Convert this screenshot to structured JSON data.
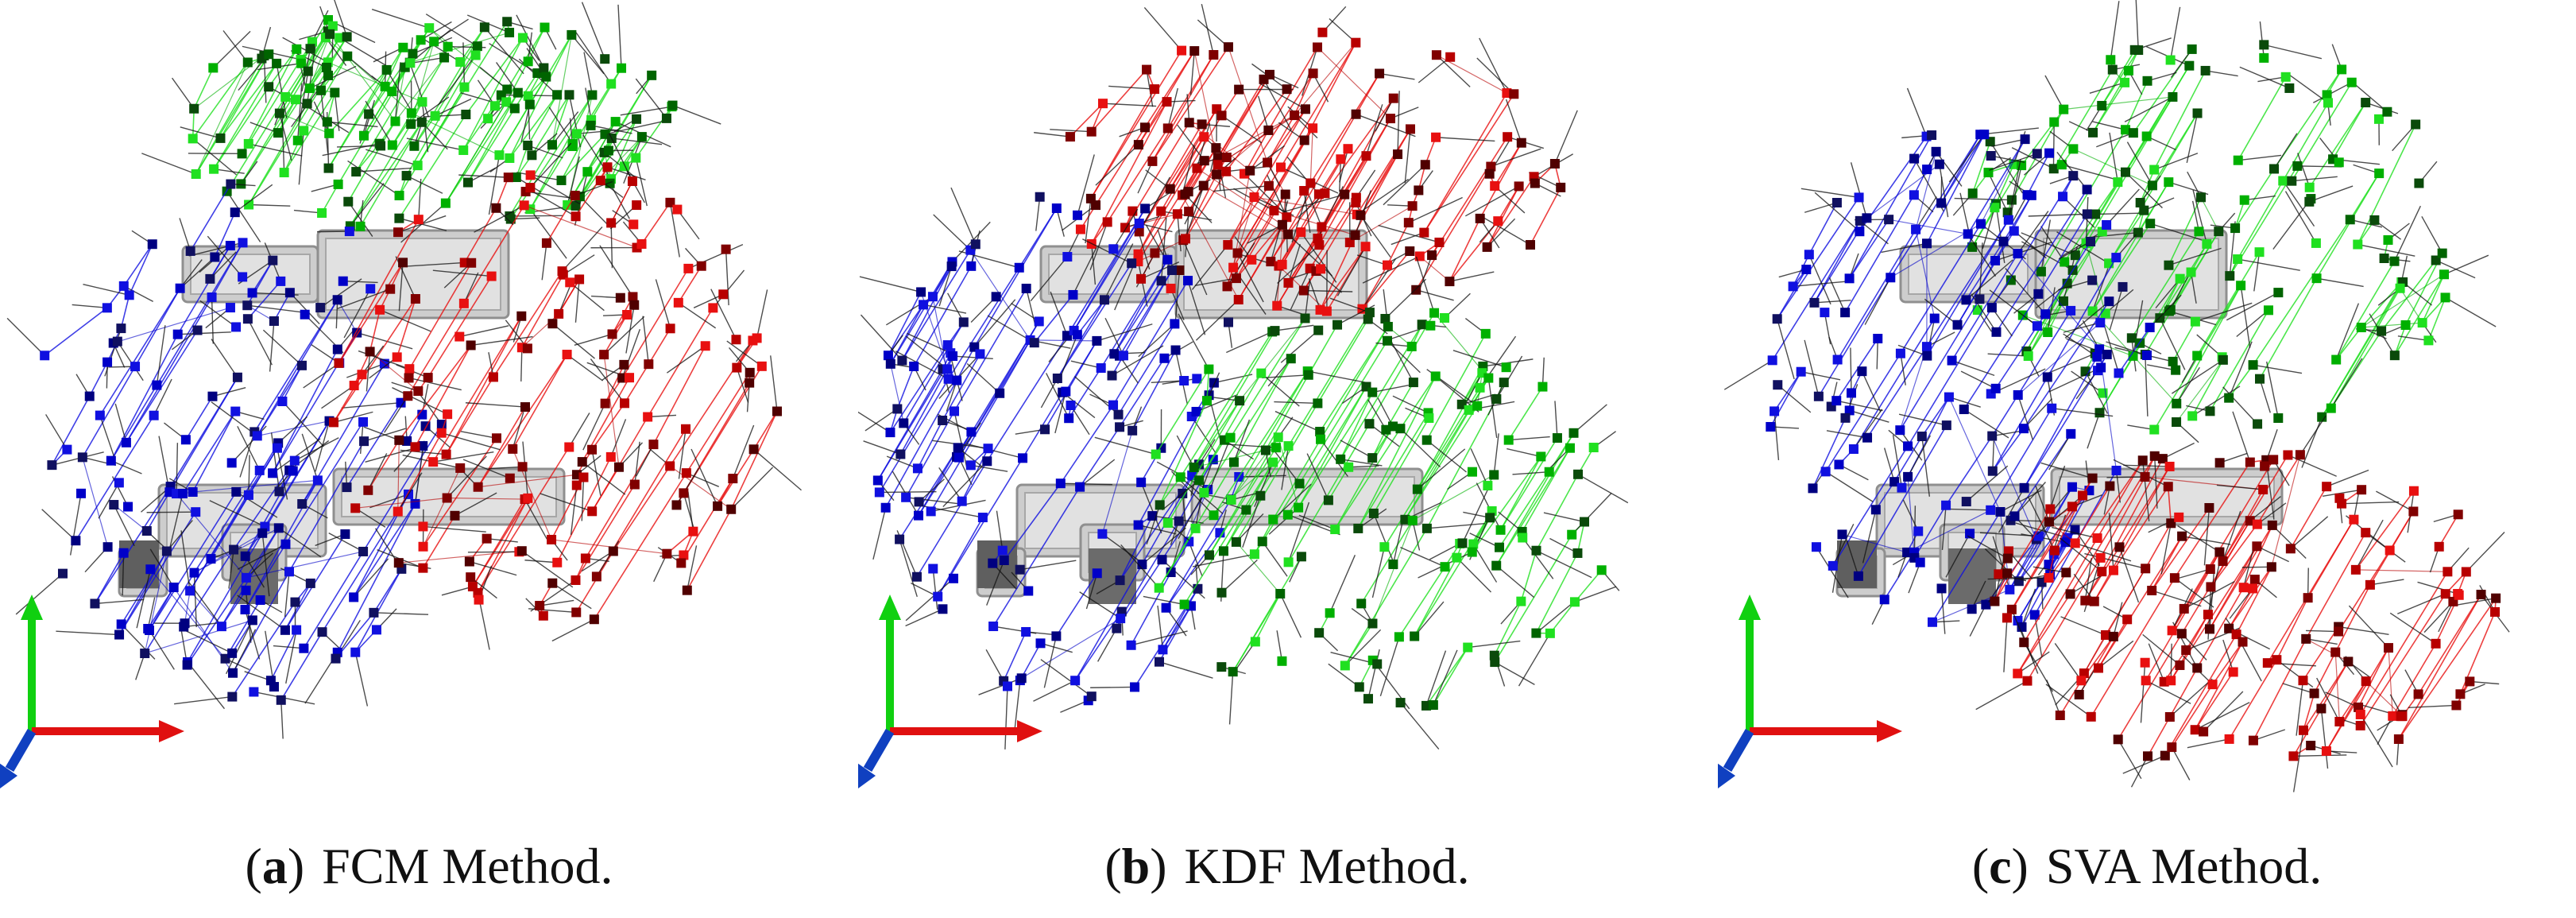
{
  "panels": [
    {
      "letter": "a",
      "caption": "FCM Method.",
      "clusters": [
        "green",
        "blue",
        "red"
      ]
    },
    {
      "letter": "b",
      "caption": "KDF Method.",
      "clusters": [
        "red",
        "blue",
        "green"
      ]
    },
    {
      "letter": "c",
      "caption": "SVA Method.",
      "clusters": [
        "green",
        "blue",
        "red"
      ]
    }
  ],
  "colors": {
    "blue": [
      "#1010e0",
      "#000080",
      "#0000c8",
      "#101060"
    ],
    "red": [
      "#e81010",
      "#800000",
      "#b80000",
      "#500000"
    ],
    "green": [
      "#20e020",
      "#006400",
      "#00b000",
      "#0a4a0a"
    ],
    "axis_x": "#e01010",
    "axis_y": "#10d010",
    "axis_z": "#1040c0"
  },
  "icons": [
    "coordinate-axes-icon",
    "robot-model-icon"
  ]
}
